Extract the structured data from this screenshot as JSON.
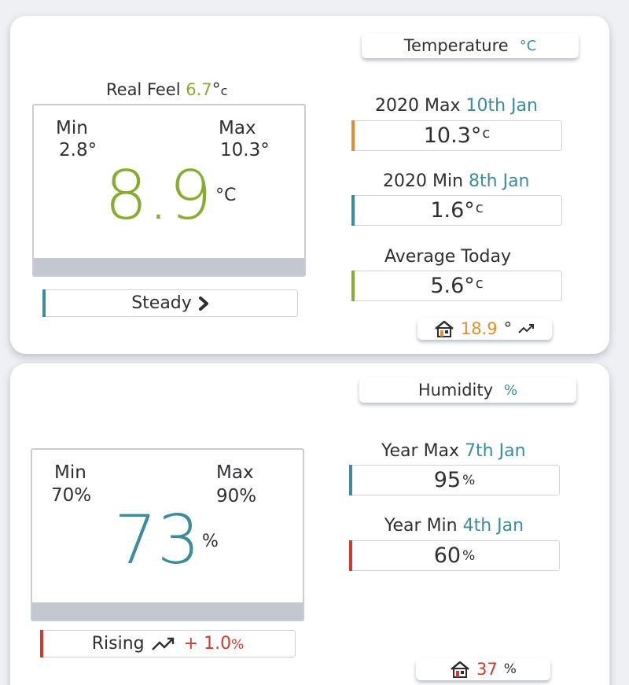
{
  "colors": {
    "green": "#86ad2e",
    "teal": "#3b8d9b",
    "orange": "#df8f2f",
    "red": "#cf3b2c",
    "gray_bar": "#c3c7d0"
  },
  "temperature": {
    "tab_title": "Temperature",
    "tab_unit": "°C",
    "real_feel_label": "Real Feel",
    "real_feel_value": "6.7",
    "real_feel_degree": "°",
    "real_feel_unit": "c",
    "min_label": "Min",
    "min_value": "2.8°",
    "max_label": "Max",
    "max_value": "10.3°",
    "current": "8.9",
    "current_unit": "°C",
    "trend_label": "Steady",
    "trend_icon": "chevron-right-icon",
    "year_max_label": "2020 Max",
    "year_max_date": "10th Jan",
    "year_max_value": "10.3",
    "year_min_label": "2020 Min",
    "year_min_date": "8th Jan",
    "year_min_value": "1.6",
    "avg_label": "Average Today",
    "avg_value": "5.6",
    "degree": "°",
    "unit_c": "c",
    "indoor_icon": "house-icon",
    "indoor_value": "18.9",
    "indoor_unit": "°",
    "indoor_trend_icon": "trending-up-icon"
  },
  "humidity": {
    "tab_title": "Humidity",
    "tab_unit": "%",
    "min_label": "Min",
    "min_value": "70%",
    "max_label": "Max",
    "max_value": "90%",
    "current": "73",
    "current_unit": "%",
    "trend_label": "Rising",
    "trend_icon": "trending-up-icon",
    "trend_change": "+ 1.0",
    "trend_change_unit": "%",
    "year_max_label": "Year Max",
    "year_max_date": "7th Jan",
    "year_max_value": "95",
    "year_min_label": "Year Min",
    "year_min_date": "4th Jan",
    "year_min_value": "60",
    "unit_pct": "%",
    "indoor_icon": "house-icon",
    "indoor_value": "37",
    "indoor_unit": "%"
  }
}
